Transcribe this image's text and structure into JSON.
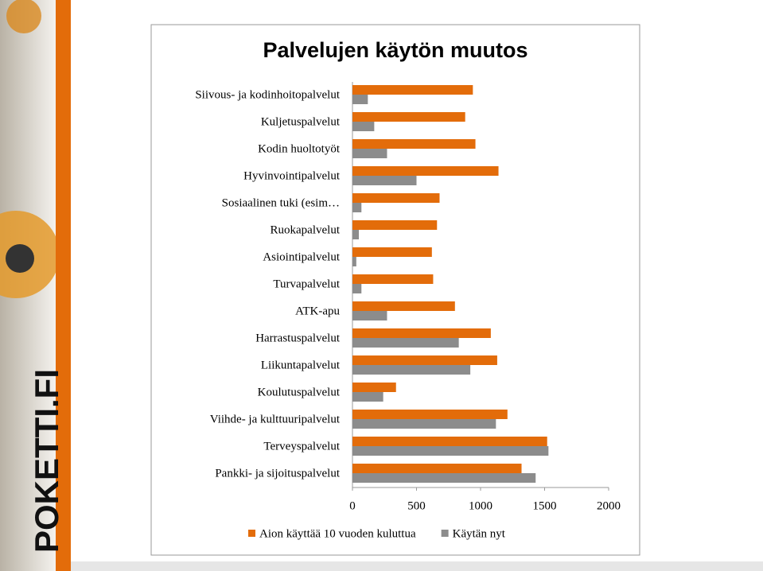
{
  "logo": "POKETTI.FI",
  "chart_data": {
    "type": "hbar",
    "title": "Palvelujen käytön muutos",
    "categories": [
      "Siivous- ja kodinhoitopalvelut",
      "Kuljetuspalvelut",
      "Kodin huoltotyöt",
      "Hyvinvointipalvelut",
      "Sosiaalinen tuki (esim…",
      "Ruokapalvelut",
      "Asiointipalvelut",
      "Turvapalvelut",
      "ATK-apu",
      "Harrastuspalvelut",
      "Liikuntapalvelut",
      "Koulutuspalvelut",
      "Viihde- ja kulttuuripalvelut",
      "Terveyspalvelut",
      "Pankki- ja sijoituspalvelut"
    ],
    "series": [
      {
        "name": "Aion käyttää 10 vuoden kuluttua",
        "color": "#e36c0a",
        "values": [
          940,
          880,
          960,
          1140,
          680,
          660,
          620,
          630,
          800,
          1080,
          1130,
          340,
          1210,
          1520,
          1320
        ]
      },
      {
        "name": "Käytän nyt",
        "color": "#8c8c8c",
        "values": [
          120,
          170,
          270,
          500,
          70,
          50,
          30,
          70,
          270,
          830,
          920,
          240,
          1120,
          1530,
          1430
        ]
      }
    ],
    "xlim": [
      0,
      2000
    ],
    "xticks": [
      0,
      500,
      1000,
      1500,
      2000
    ],
    "legend": "bottom"
  }
}
